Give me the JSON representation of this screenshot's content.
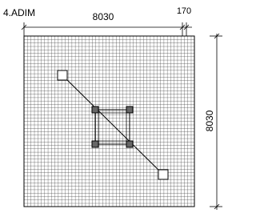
{
  "title": "4.ADIM",
  "dimensions": {
    "top_width": "8030",
    "top_gap": "170",
    "right_height": "8030"
  }
}
